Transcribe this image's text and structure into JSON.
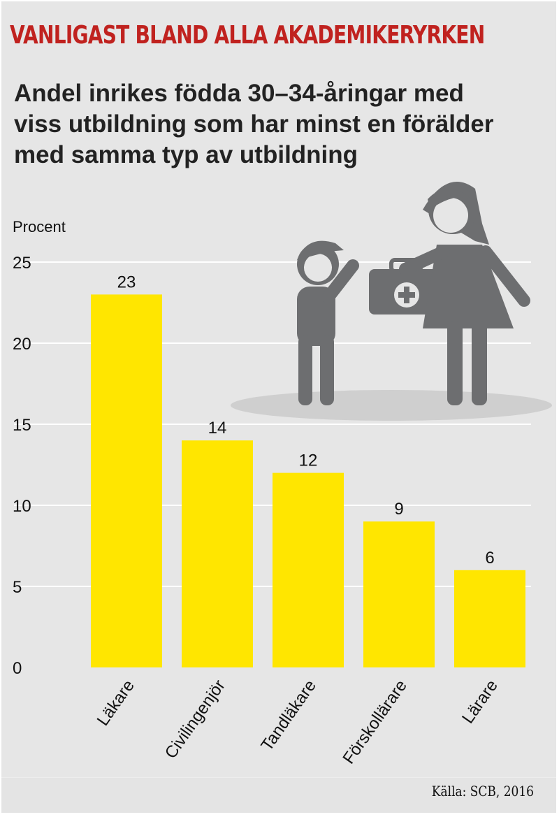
{
  "header": {
    "title": "VANLIGAST BLAND ALLA AKADEMIKERYRKEN",
    "subtitle_lines": [
      "Andel inrikes födda 30–34-åringar med",
      "viss utbildning som har minst en förälder",
      "med samma typ av utbildning"
    ]
  },
  "source": "Källa: SCB, 2016",
  "colors": {
    "title": "#c0221f",
    "bar": "#ffe600",
    "grid": "#ffffff",
    "background": "#e6e6e6",
    "illustration": "#6d6e70"
  },
  "illustration": "child-receiving-medical-kit-from-parent",
  "chart_data": {
    "type": "bar",
    "title": "Andel inrikes födda 30–34-åringar med viss utbildning som har minst en förälder med samma typ av utbildning",
    "ylabel": "Procent",
    "xlabel": "",
    "categories": [
      "Läkare",
      "Civilingenjör",
      "Tandläkare",
      "Förskollärare",
      "Lärare"
    ],
    "values": [
      23,
      14,
      12,
      9,
      6
    ],
    "data_labels": [
      "23",
      "14",
      "12",
      "9",
      "6"
    ],
    "yticks": [
      "0",
      "5",
      "10",
      "15",
      "20",
      "25"
    ],
    "ylim": [
      0,
      25
    ],
    "grid": true,
    "legend": "none"
  }
}
